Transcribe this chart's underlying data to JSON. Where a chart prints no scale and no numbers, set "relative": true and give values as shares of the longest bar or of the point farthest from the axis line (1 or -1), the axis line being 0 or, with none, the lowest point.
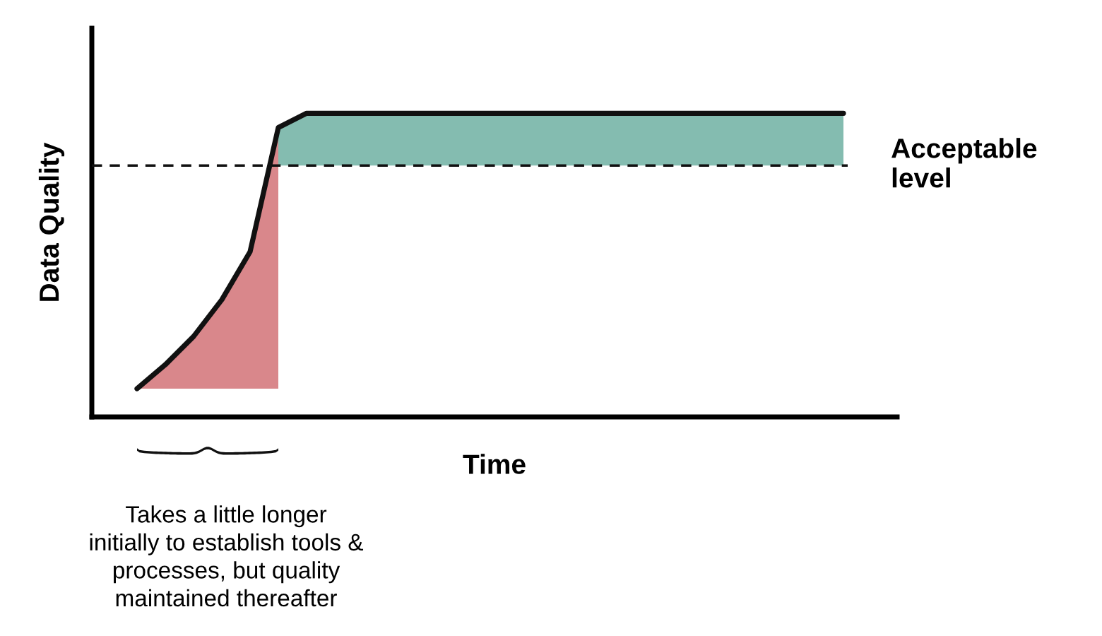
{
  "chart_data": {
    "type": "line",
    "relative": true,
    "xlabel": "Time",
    "ylabel": "Data Quality",
    "categories": [
      null,
      null,
      null,
      null,
      null,
      null,
      null,
      null,
      null,
      null,
      null,
      null,
      null,
      null,
      null,
      null,
      null,
      null,
      null,
      null,
      null,
      null,
      null,
      null,
      null,
      null
    ],
    "series": [
      {
        "type": "area",
        "color": "#d9878b",
        "values": [
          0.093,
          0.172,
          0.265,
          0.386,
          0.544,
          0.953,
          null,
          null,
          null,
          null,
          null,
          null,
          null,
          null,
          null,
          null,
          null,
          null,
          null,
          null,
          null,
          null,
          null,
          null,
          null,
          null
        ]
      },
      {
        "color": "#111111",
        "values": [
          0.093,
          0.172,
          0.265,
          0.386,
          0.544,
          0.953,
          1,
          1,
          1,
          1,
          1,
          1,
          1,
          1,
          1,
          1,
          1,
          1,
          1,
          1,
          1,
          1,
          1,
          1,
          1,
          1
        ]
      }
    ],
    "ref_lines": [
      {
        "axis": "y",
        "value": 0.828,
        "label": "Acceptable\nlevel",
        "color": "#111111",
        "line_style": "dashed"
      }
    ],
    "bands": [
      {
        "axis": "y",
        "from": 0.828,
        "to": 1,
        "color": "#84bcb0"
      }
    ],
    "annotations": [
      "Takes a little longer\ninitially to establish tools &\nprocesses, but quality\nmaintained thereafter"
    ],
    "marker": "none"
  }
}
